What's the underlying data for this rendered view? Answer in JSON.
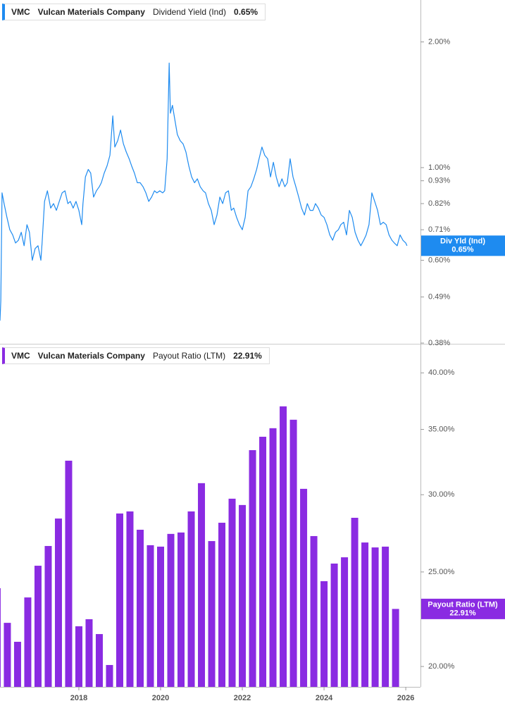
{
  "chart_data": [
    {
      "type": "line",
      "ticker": "VMC",
      "company": "Vulcan Materials Company",
      "log_scale": true,
      "xlim": [
        2016.07,
        2026.36
      ],
      "ylim": [
        0.38,
        2.52
      ],
      "yticks": [
        {
          "value": 2,
          "label": "2.00%"
        },
        {
          "value": 1,
          "label": "1.00%"
        },
        {
          "value": 0.93,
          "label": "0.93%"
        },
        {
          "value": 0.82,
          "label": "0.82%"
        },
        {
          "value": 0.71,
          "label": "0.71%"
        },
        {
          "value": 0.6,
          "label": "0.60%"
        },
        {
          "value": 0.49,
          "label": "0.49%"
        },
        {
          "value": 0.38,
          "label": "0.38%"
        }
      ],
      "x": [
        2016.07,
        2016.09,
        2016.12,
        2016.17,
        2016.24,
        2016.31,
        2016.38,
        2016.45,
        2016.52,
        2016.59,
        2016.66,
        2016.73,
        2016.79,
        2016.86,
        2016.93,
        2017.0,
        2017.07,
        2017.1,
        2017.16,
        2017.23,
        2017.31,
        2017.38,
        2017.45,
        2017.52,
        2017.59,
        2017.66,
        2017.73,
        2017.79,
        2017.86,
        2017.93,
        2018.0,
        2018.07,
        2018.1,
        2018.16,
        2018.23,
        2018.29,
        2018.36,
        2018.43,
        2018.5,
        2018.55,
        2018.62,
        2018.69,
        2018.76,
        2018.83,
        2018.88,
        2018.95,
        2019.02,
        2019.09,
        2019.16,
        2019.23,
        2019.29,
        2019.36,
        2019.43,
        2019.5,
        2019.57,
        2019.64,
        2019.71,
        2019.78,
        2019.85,
        2019.91,
        2019.98,
        2020.05,
        2020.1,
        2020.16,
        2020.21,
        2020.24,
        2020.29,
        2020.35,
        2020.41,
        2020.48,
        2020.55,
        2020.62,
        2020.69,
        2020.76,
        2020.83,
        2020.9,
        2020.97,
        2021.04,
        2021.1,
        2021.17,
        2021.24,
        2021.31,
        2021.38,
        2021.45,
        2021.52,
        2021.59,
        2021.66,
        2021.73,
        2021.79,
        2021.86,
        2021.93,
        2022.0,
        2022.07,
        2022.14,
        2022.21,
        2022.28,
        2022.35,
        2022.41,
        2022.48,
        2022.55,
        2022.62,
        2022.69,
        2022.76,
        2022.83,
        2022.9,
        2022.97,
        2023.04,
        2023.1,
        2023.17,
        2023.24,
        2023.31,
        2023.38,
        2023.45,
        2023.52,
        2023.59,
        2023.66,
        2023.73,
        2023.79,
        2023.86,
        2023.93,
        2024.0,
        2024.07,
        2024.14,
        2024.21,
        2024.28,
        2024.35,
        2024.41,
        2024.48,
        2024.55,
        2024.62,
        2024.69,
        2024.76,
        2024.83,
        2024.9,
        2024.97,
        2025.03,
        2025.1,
        2025.17,
        2025.24,
        2025.31,
        2025.38,
        2025.45,
        2025.52,
        2025.59,
        2025.66,
        2025.72,
        2025.79,
        2025.86,
        2025.93,
        2026.0,
        2026.03
      ],
      "series": [
        {
          "name": "Dividend Yield (Ind)",
          "short_name": "Div Yld (Ind)",
          "color": "#1e8bf0",
          "last_label": "0.65%",
          "values": [
            0.43,
            0.48,
            0.87,
            0.82,
            0.76,
            0.71,
            0.69,
            0.66,
            0.67,
            0.7,
            0.65,
            0.73,
            0.7,
            0.6,
            0.64,
            0.65,
            0.6,
            0.66,
            0.83,
            0.88,
            0.8,
            0.82,
            0.79,
            0.83,
            0.87,
            0.88,
            0.82,
            0.83,
            0.8,
            0.83,
            0.79,
            0.73,
            0.82,
            0.95,
            0.99,
            0.97,
            0.85,
            0.88,
            0.9,
            0.92,
            0.97,
            1.01,
            1.07,
            1.33,
            1.12,
            1.16,
            1.23,
            1.14,
            1.09,
            1.05,
            1.01,
            0.97,
            0.92,
            0.92,
            0.9,
            0.87,
            0.83,
            0.85,
            0.88,
            0.87,
            0.88,
            0.87,
            0.88,
            1.05,
            1.78,
            1.35,
            1.41,
            1.3,
            1.2,
            1.16,
            1.14,
            1.09,
            1.01,
            0.95,
            0.92,
            0.94,
            0.9,
            0.88,
            0.87,
            0.82,
            0.79,
            0.73,
            0.77,
            0.85,
            0.82,
            0.87,
            0.88,
            0.79,
            0.8,
            0.76,
            0.73,
            0.71,
            0.76,
            0.88,
            0.9,
            0.94,
            0.99,
            1.05,
            1.12,
            1.07,
            1.05,
            0.95,
            1.03,
            0.95,
            0.9,
            0.94,
            0.9,
            0.92,
            1.05,
            0.95,
            0.9,
            0.85,
            0.8,
            0.77,
            0.82,
            0.79,
            0.79,
            0.82,
            0.8,
            0.77,
            0.76,
            0.73,
            0.69,
            0.67,
            0.7,
            0.71,
            0.73,
            0.74,
            0.69,
            0.79,
            0.76,
            0.7,
            0.67,
            0.65,
            0.67,
            0.69,
            0.73,
            0.87,
            0.83,
            0.79,
            0.73,
            0.74,
            0.73,
            0.69,
            0.67,
            0.66,
            0.65,
            0.69,
            0.67,
            0.66,
            0.65
          ]
        }
      ]
    },
    {
      "type": "bar",
      "ticker": "VMC",
      "company": "Vulcan Materials Company",
      "log_scale": true,
      "xlim": [
        2016.07,
        2026.36
      ],
      "xticks": [
        2018,
        2020,
        2022,
        2024,
        2026
      ],
      "ylim": [
        19.06,
        42.7
      ],
      "yticks": [
        {
          "value": 40,
          "label": "40.00%"
        },
        {
          "value": 35,
          "label": "35.00%"
        },
        {
          "value": 30,
          "label": "30.00%"
        },
        {
          "value": 25,
          "label": "25.00%"
        },
        {
          "value": 20,
          "label": "20.00%"
        }
      ],
      "x": [
        2016.0,
        2016.25,
        2016.5,
        2016.75,
        2017.0,
        2017.25,
        2017.5,
        2017.75,
        2018.0,
        2018.25,
        2018.5,
        2018.75,
        2019.0,
        2019.25,
        2019.5,
        2019.75,
        2020.0,
        2020.25,
        2020.5,
        2020.75,
        2021.0,
        2021.25,
        2021.5,
        2021.75,
        2022.0,
        2022.25,
        2022.5,
        2022.75,
        2023.0,
        2023.25,
        2023.5,
        2023.75,
        2024.0,
        2024.25,
        2024.5,
        2024.75,
        2025.0,
        2025.25,
        2025.5,
        2025.75
      ],
      "series": [
        {
          "name": "Payout Ratio (LTM)",
          "color": "#8a2be2",
          "last_label": "22.91%",
          "values": [
            24.06,
            22.17,
            21.2,
            23.54,
            25.37,
            26.58,
            28.36,
            32.51,
            21.99,
            22.36,
            21.59,
            20.07,
            28.7,
            28.84,
            27.62,
            26.63,
            26.54,
            27.35,
            27.44,
            28.84,
            30.83,
            26.89,
            28.08,
            29.72,
            29.28,
            33.33,
            34.4,
            35.1,
            36.96,
            35.81,
            30.42,
            27.21,
            24.46,
            25.5,
            25.88,
            28.41,
            26.8,
            26.49,
            26.54,
            22.91
          ]
        }
      ]
    }
  ]
}
